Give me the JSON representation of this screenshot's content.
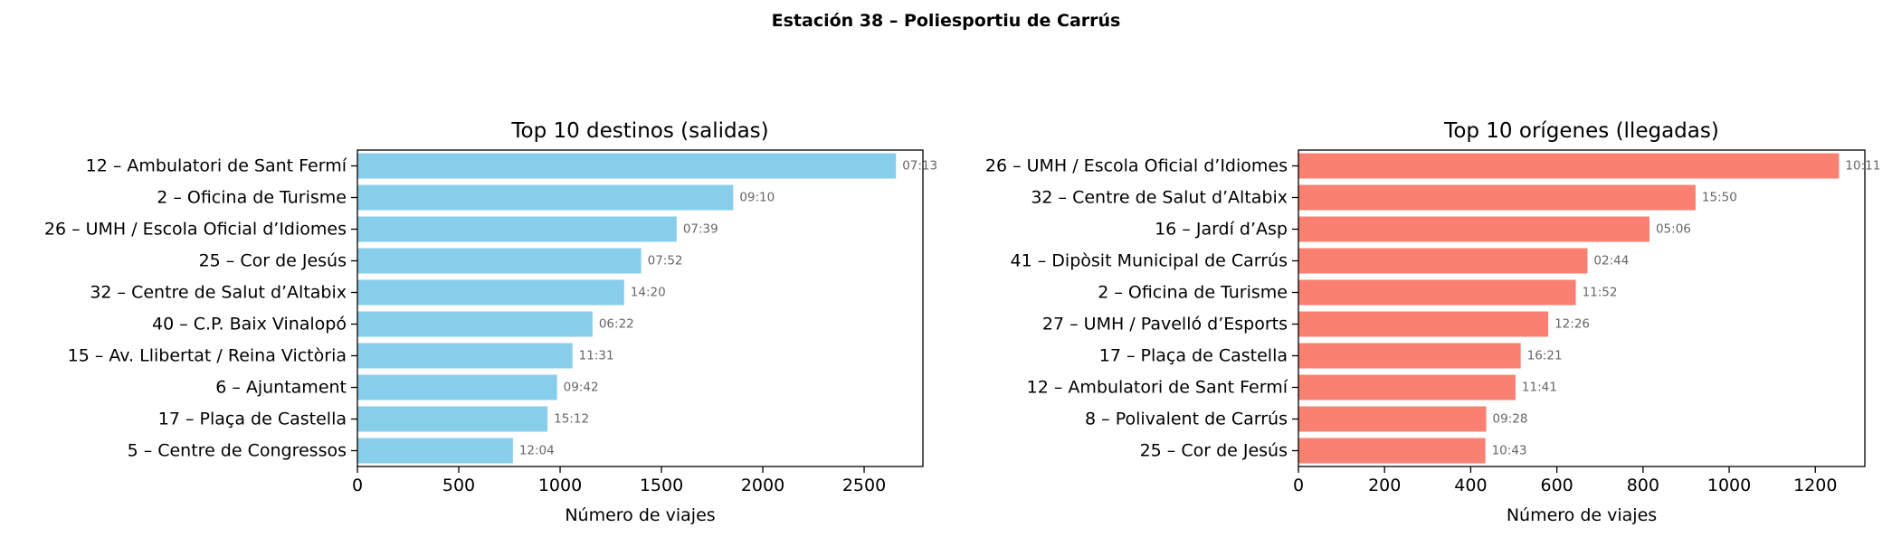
{
  "figure": {
    "suptitle": "Estación 38 – Poliesportiu de Carrús"
  },
  "chart_data": [
    {
      "type": "bar",
      "orientation": "horizontal",
      "title": "Top 10 destinos (salidas)",
      "xlabel": "Número de viajes",
      "ylabel": "",
      "color": "#87ceeb",
      "xlim": [
        0,
        2790
      ],
      "xticks": [
        0,
        500,
        1000,
        1500,
        2000,
        2500
      ],
      "categories": [
        "12 – Ambulatori de Sant Fermí",
        "2 – Oficina de Turisme",
        "26 – UMH / Escola Oficial d’Idiomes",
        "25 – Cor de Jesús",
        "32 – Centre de Salut d’Altabix",
        "40 – C.P. Baix Vinalopó",
        "15 – Av. Llibertat / Reina Victòria",
        "6 – Ajuntament",
        "17 – Plaça de Castella",
        "5 – Centre de Congressos"
      ],
      "values": [
        2657,
        1854,
        1575,
        1400,
        1316,
        1160,
        1061,
        985,
        938,
        767
      ],
      "annotations": [
        "07:13",
        "09:10",
        "07:39",
        "07:52",
        "14:20",
        "06:22",
        "11:31",
        "09:42",
        "15:12",
        "12:04"
      ],
      "grid": false
    },
    {
      "type": "bar",
      "orientation": "horizontal",
      "title": "Top 10 orígenes (llegadas)",
      "xlabel": "Número de viajes",
      "ylabel": "",
      "color": "#fa8072",
      "xlim": [
        0,
        1315
      ],
      "xticks": [
        0,
        200,
        400,
        600,
        800,
        1000,
        1200
      ],
      "categories": [
        "26 – UMH / Escola Oficial d’Idiomes",
        "32 – Centre de Salut d’Altabix",
        "16 – Jardí d’Asp",
        "41 – Dipòsit Municipal de Carrús",
        "2 – Oficina de Turisme",
        "27 – UMH / Pavelló d’Esports",
        "17 – Plaça de Castella",
        "12 – Ambulatori de Sant Fermí",
        "8 – Polivalent de Carrús",
        "25 – Cor de Jesús"
      ],
      "values": [
        1255,
        922,
        815,
        671,
        644,
        580,
        516,
        504,
        436,
        434
      ],
      "annotations": [
        "10:11",
        "15:50",
        "05:06",
        "02:44",
        "11:52",
        "12:26",
        "16:21",
        "11:41",
        "09:28",
        "10:43"
      ],
      "grid": false
    }
  ]
}
